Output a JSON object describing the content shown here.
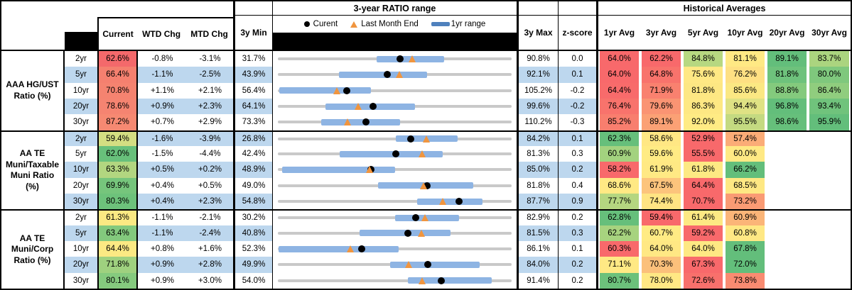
{
  "header": {
    "chart_title": "3-year RATIO range",
    "hist_title": "Historical Averages",
    "legend": {
      "current": "Curent",
      "last_month": "Last Month End",
      "range": "1yr range"
    },
    "columns": {
      "current": "Current",
      "wtd": "WTD Chg",
      "mtd": "MTD Chg",
      "min": "3y Min",
      "max": "3y Max",
      "z": "z-score",
      "avgs": [
        "1yr Avg",
        "3yr Avg",
        "5yr Avg",
        "10yr Avg",
        "20yr Avg",
        "30yr Avg"
      ]
    }
  },
  "colors": {
    "row_band": "#BDD7EE",
    "range_bar": "#8EB4E3",
    "track": "#C9C9C9",
    "marker_dot": "#000000",
    "marker_triangle": "#F0953F",
    "legend_dash": "#4F81BD",
    "header_black": "#000000"
  },
  "groups": [
    {
      "label": "AAA HG/UST Ratio (%)",
      "rows": [
        {
          "tenor": "2yr",
          "current": "62.6%",
          "current_bg": "#F4696B",
          "wtd": "-0.8%",
          "mtd": "-3.1%",
          "min": "31.7%",
          "max": "90.8%",
          "z": "0.0",
          "chart": {
            "min": 31.7,
            "max": 90.8,
            "lo": 56.6,
            "hi": 73.8,
            "cur": 62.6,
            "last": 65.7
          },
          "avgs": [
            {
              "v": "64.0%",
              "bg": "#F8696B"
            },
            {
              "v": "62.2%",
              "bg": "#F8696B"
            },
            {
              "v": "84.8%",
              "bg": "#B7D881"
            },
            {
              "v": "81.1%",
              "bg": "#FFE984"
            },
            {
              "v": "89.1%",
              "bg": "#63BE7B"
            },
            {
              "v": "83.7%",
              "bg": "#ABD47F"
            }
          ]
        },
        {
          "tenor": "5yr",
          "current": "66.4%",
          "current_bg": "#F5806F",
          "wtd": "-1.1%",
          "mtd": "-2.5%",
          "min": "43.9%",
          "max": "92.1%",
          "z": "0.1",
          "chart": {
            "min": 43.9,
            "max": 92.1,
            "lo": 56.5,
            "hi": 74.6,
            "cur": 66.4,
            "last": 68.9
          },
          "avgs": [
            {
              "v": "64.0%",
              "bg": "#F8696B"
            },
            {
              "v": "64.8%",
              "bg": "#F8736C"
            },
            {
              "v": "75.6%",
              "bg": "#FFE884"
            },
            {
              "v": "76.2%",
              "bg": "#FEE083"
            },
            {
              "v": "81.8%",
              "bg": "#6EC27C"
            },
            {
              "v": "80.0%",
              "bg": "#7FC87D"
            }
          ]
        },
        {
          "tenor": "10yr",
          "current": "70.8%",
          "current_bg": "#F58370",
          "wtd": "+1.1%",
          "mtd": "+2.1%",
          "min": "56.4%",
          "max": "105.2%",
          "z": "-0.2",
          "chart": {
            "min": 56.4,
            "max": 105.2,
            "lo": 56.7,
            "hi": 75.8,
            "cur": 70.8,
            "last": 68.7
          },
          "avgs": [
            {
              "v": "64.4%",
              "bg": "#F86B6B"
            },
            {
              "v": "71.9%",
              "bg": "#F9816F"
            },
            {
              "v": "81.8%",
              "bg": "#FDE783"
            },
            {
              "v": "85.6%",
              "bg": "#FBE883"
            },
            {
              "v": "88.8%",
              "bg": "#84CA7D"
            },
            {
              "v": "86.4%",
              "bg": "#90CD7E"
            }
          ]
        },
        {
          "tenor": "20yr",
          "current": "78.6%",
          "current_bg": "#F58471",
          "wtd": "+0.9%",
          "mtd": "+2.3%",
          "min": "64.1%",
          "max": "99.6%",
          "z": "-0.2",
          "chart": {
            "min": 64.1,
            "max": 99.6,
            "lo": 71.3,
            "hi": 84.9,
            "cur": 78.6,
            "last": 76.3
          },
          "avgs": [
            {
              "v": "76.4%",
              "bg": "#F8736C"
            },
            {
              "v": "79.6%",
              "bg": "#FA9473"
            },
            {
              "v": "86.3%",
              "bg": "#FEE883"
            },
            {
              "v": "94.4%",
              "bg": "#DFE284"
            },
            {
              "v": "96.8%",
              "bg": "#63BE7B"
            },
            {
              "v": "93.4%",
              "bg": "#70C37C"
            }
          ]
        },
        {
          "tenor": "30yr",
          "current": "87.2%",
          "current_bg": "#F68972",
          "wtd": "+0.7%",
          "mtd": "+2.9%",
          "min": "73.3%",
          "max": "110.2%",
          "z": "-0.3",
          "chart": {
            "min": 73.3,
            "max": 110.2,
            "lo": 80.1,
            "hi": 92.6,
            "cur": 87.2,
            "last": 84.3
          },
          "avgs": [
            {
              "v": "85.2%",
              "bg": "#F87E6E"
            },
            {
              "v": "89.1%",
              "bg": "#FBA175"
            },
            {
              "v": "92.0%",
              "bg": "#FFEB84"
            },
            {
              "v": "95.5%",
              "bg": "#C4DA81"
            },
            {
              "v": "98.6%",
              "bg": "#66BF7B"
            },
            {
              "v": "95.9%",
              "bg": "#63BE7B"
            }
          ]
        }
      ]
    },
    {
      "label": "AA TE Muni/Taxable Muni Ratio (%)",
      "rows": [
        {
          "tenor": "2yr",
          "current": "59.4%",
          "current_bg": "#D4DE82",
          "wtd": "-1.6%",
          "mtd": "-3.9%",
          "min": "26.8%",
          "max": "84.2%",
          "z": "0.1",
          "chart": {
            "min": 26.8,
            "max": 84.2,
            "lo": 55.7,
            "hi": 71.0,
            "cur": 59.4,
            "last": 63.3
          },
          "avgs": [
            {
              "v": "62.3%",
              "bg": "#66BF7B"
            },
            {
              "v": "58.6%",
              "bg": "#FFE784"
            },
            {
              "v": "52.9%",
              "bg": "#F8696B"
            },
            {
              "v": "57.4%",
              "bg": "#FBAC77"
            },
            null,
            null
          ]
        },
        {
          "tenor": "5yr",
          "current": "62.0%",
          "current_bg": "#68C07B",
          "wtd": "-1.5%",
          "mtd": "-4.4%",
          "min": "42.4%",
          "max": "81.3%",
          "z": "0.3",
          "chart": {
            "min": 42.4,
            "max": 81.3,
            "lo": 52.7,
            "hi": 69.8,
            "cur": 62.0,
            "last": 66.4
          },
          "avgs": [
            {
              "v": "60.9%",
              "bg": "#A3D27F"
            },
            {
              "v": "59.6%",
              "bg": "#FFEB84"
            },
            {
              "v": "55.5%",
              "bg": "#F8696B"
            },
            {
              "v": "60.0%",
              "bg": "#FFE984"
            },
            null,
            null
          ]
        },
        {
          "tenor": "10yr",
          "current": "63.3%",
          "current_bg": "#B2D680",
          "wtd": "+0.5%",
          "mtd": "+0.2%",
          "min": "48.9%",
          "max": "85.0%",
          "z": "0.2",
          "chart": {
            "min": 48.9,
            "max": 85.0,
            "lo": 49.6,
            "hi": 67.0,
            "cur": 63.3,
            "last": 63.1
          },
          "avgs": [
            {
              "v": "58.2%",
              "bg": "#F8696B"
            },
            {
              "v": "61.9%",
              "bg": "#FFE984"
            },
            {
              "v": "61.8%",
              "bg": "#FDE983"
            },
            {
              "v": "66.2%",
              "bg": "#63BE7B"
            },
            null,
            null
          ]
        },
        {
          "tenor": "20yr",
          "current": "69.9%",
          "current_bg": "#76C57C",
          "wtd": "+0.4%",
          "mtd": "+0.5%",
          "min": "49.0%",
          "max": "81.8%",
          "z": "0.4",
          "chart": {
            "min": 49.0,
            "max": 81.8,
            "lo": 63.1,
            "hi": 76.4,
            "cur": 69.9,
            "last": 69.4
          },
          "avgs": [
            {
              "v": "68.6%",
              "bg": "#FFE984"
            },
            {
              "v": "67.5%",
              "bg": "#FCC47C"
            },
            {
              "v": "64.4%",
              "bg": "#F8696B"
            },
            {
              "v": "68.5%",
              "bg": "#FEE883"
            },
            null,
            null
          ]
        },
        {
          "tenor": "30yr",
          "current": "80.3%",
          "current_bg": "#6DC27B",
          "wtd": "+0.4%",
          "mtd": "+2.3%",
          "min": "54.8%",
          "max": "87.7%",
          "z": "0.9",
          "chart": {
            "min": 54.8,
            "max": 87.7,
            "lo": 74.4,
            "hi": 83.6,
            "cur": 80.3,
            "last": 78.0
          },
          "avgs": [
            {
              "v": "77.7%",
              "bg": "#B5D680"
            },
            {
              "v": "74.4%",
              "bg": "#FFE483"
            },
            {
              "v": "70.7%",
              "bg": "#F8696B"
            },
            {
              "v": "73.2%",
              "bg": "#FA9B74"
            },
            null,
            null
          ]
        }
      ]
    },
    {
      "label": "AA TE Muni/Corp Ratio (%)",
      "rows": [
        {
          "tenor": "2yr",
          "current": "61.3%",
          "current_bg": "#FBE983",
          "wtd": "-1.1%",
          "mtd": "-2.1%",
          "min": "30.2%",
          "max": "82.9%",
          "z": "0.2",
          "chart": {
            "min": 30.2,
            "max": 82.9,
            "lo": 56.7,
            "hi": 71.1,
            "cur": 61.3,
            "last": 63.4
          },
          "avgs": [
            {
              "v": "62.8%",
              "bg": "#66BF7B"
            },
            {
              "v": "59.4%",
              "bg": "#F8696B"
            },
            {
              "v": "61.4%",
              "bg": "#FDE983"
            },
            {
              "v": "60.9%",
              "bg": "#FBB578"
            },
            null,
            null
          ]
        },
        {
          "tenor": "5yr",
          "current": "63.4%",
          "current_bg": "#83C97D",
          "wtd": "-1.1%",
          "mtd": "-2.4%",
          "min": "40.8%",
          "max": "81.5%",
          "z": "0.3",
          "chart": {
            "min": 40.8,
            "max": 81.5,
            "lo": 55.0,
            "hi": 70.8,
            "cur": 63.4,
            "last": 65.8
          },
          "avgs": [
            {
              "v": "62.2%",
              "bg": "#A7D37F"
            },
            {
              "v": "60.7%",
              "bg": "#FFEB84"
            },
            {
              "v": "59.2%",
              "bg": "#F8696B"
            },
            {
              "v": "60.8%",
              "bg": "#FFE884"
            },
            null,
            null
          ]
        },
        {
          "tenor": "10yr",
          "current": "64.4%",
          "current_bg": "#FBE983",
          "wtd": "+0.8%",
          "mtd": "+1.6%",
          "min": "52.3%",
          "max": "86.1%",
          "z": "0.1",
          "chart": {
            "min": 52.3,
            "max": 86.1,
            "lo": 52.4,
            "hi": 69.8,
            "cur": 64.4,
            "last": 62.8
          },
          "avgs": [
            {
              "v": "60.3%",
              "bg": "#F8696B"
            },
            {
              "v": "64.0%",
              "bg": "#FFE884"
            },
            {
              "v": "64.0%",
              "bg": "#FEE883"
            },
            {
              "v": "67.8%",
              "bg": "#63BE7B"
            },
            null,
            null
          ]
        },
        {
          "tenor": "20yr",
          "current": "71.8%",
          "current_bg": "#9FD17F",
          "wtd": "+0.9%",
          "mtd": "+2.8%",
          "min": "49.9%",
          "max": "84.0%",
          "z": "0.2",
          "chart": {
            "min": 49.9,
            "max": 84.0,
            "lo": 66.3,
            "hi": 79.3,
            "cur": 71.8,
            "last": 69.0
          },
          "avgs": [
            {
              "v": "71.1%",
              "bg": "#FFE984"
            },
            {
              "v": "70.3%",
              "bg": "#FBC07B"
            },
            {
              "v": "67.3%",
              "bg": "#F8696B"
            },
            {
              "v": "72.0%",
              "bg": "#63BE7B"
            },
            null,
            null
          ]
        },
        {
          "tenor": "30yr",
          "current": "80.1%",
          "current_bg": "#85CA7E",
          "wtd": "+0.9%",
          "mtd": "+3.0%",
          "min": "54.0%",
          "max": "91.4%",
          "z": "0.2",
          "chart": {
            "min": 54.0,
            "max": 91.4,
            "lo": 74.8,
            "hi": 88.2,
            "cur": 80.1,
            "last": 77.1
          },
          "avgs": [
            {
              "v": "80.7%",
              "bg": "#6CC17B"
            },
            {
              "v": "78.0%",
              "bg": "#FFE884"
            },
            {
              "v": "72.6%",
              "bg": "#F8706C"
            },
            {
              "v": "73.8%",
              "bg": "#F98B71"
            },
            null,
            null
          ]
        }
      ]
    }
  ]
}
